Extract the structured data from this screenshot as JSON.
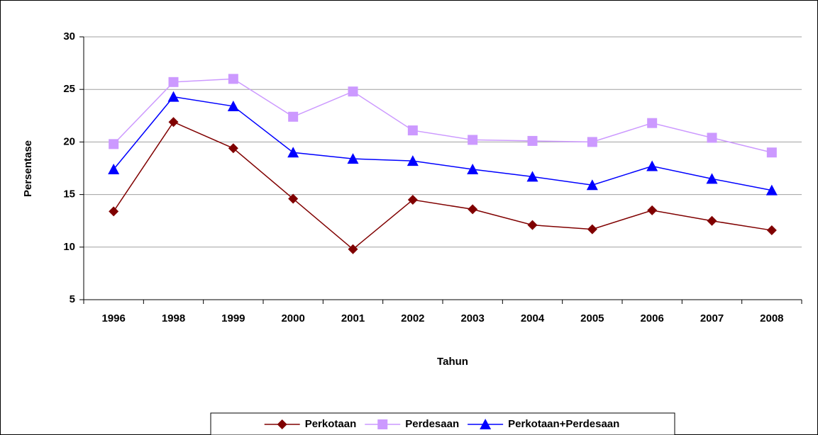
{
  "chart_data": {
    "type": "line",
    "x_label": "Tahun",
    "y_label": "Persentase",
    "categories": [
      "1996",
      "1998",
      "1999",
      "2000",
      "2001",
      "2002",
      "2003",
      "2004",
      "2005",
      "2006",
      "2007",
      "2008"
    ],
    "series": [
      {
        "name": "Perkotaan",
        "color": "#800000",
        "marker": "diamond",
        "values": [
          13.4,
          21.9,
          19.4,
          14.6,
          9.8,
          14.5,
          13.6,
          12.1,
          11.7,
          13.5,
          12.5,
          11.6
        ]
      },
      {
        "name": "Perdesaan",
        "color": "#cc99ff",
        "marker": "square",
        "values": [
          19.8,
          25.7,
          26.0,
          22.4,
          24.8,
          21.1,
          20.2,
          20.1,
          20.0,
          21.8,
          20.4,
          19.0
        ]
      },
      {
        "name": "Perkotaan+Perdesaan",
        "color": "#0000ff",
        "marker": "triangle",
        "values": [
          17.4,
          24.3,
          23.4,
          19.0,
          18.4,
          18.2,
          17.4,
          16.7,
          15.9,
          17.7,
          16.5,
          15.4
        ]
      }
    ],
    "ylim": [
      5,
      30
    ],
    "yticks": [
      5,
      10,
      15,
      20,
      25,
      30
    ],
    "grid": true,
    "legend": "bottom"
  }
}
